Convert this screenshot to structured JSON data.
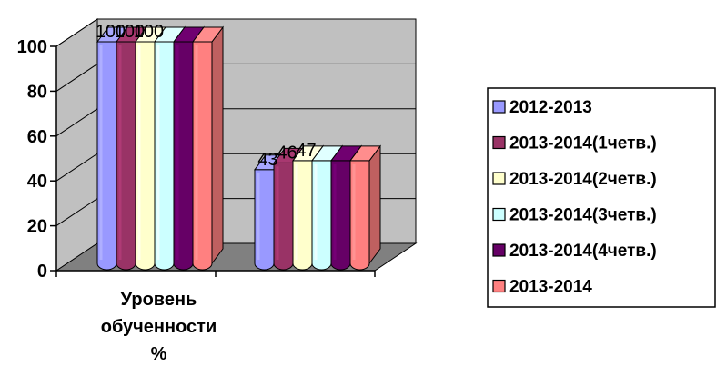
{
  "chart_data": {
    "type": "bar",
    "title": "",
    "xlabel": "",
    "ylabel": "",
    "ylim": [
      0,
      100
    ],
    "yticks": [
      "0",
      "20",
      "40",
      "60",
      "80",
      "100"
    ],
    "grid": true,
    "legend_position": "right",
    "categories": [
      "Уровень обученности %",
      ""
    ],
    "category_label_lines": [
      "Уровень",
      "обученности",
      "%"
    ],
    "series": [
      {
        "name": "2012-2013",
        "values": [
          100,
          43
        ],
        "labels": [
          "100",
          "43"
        ],
        "color": "#9999ff"
      },
      {
        "name": "2013-2014(1четв.)",
        "values": [
          100,
          46
        ],
        "labels": [
          "100",
          "46"
        ],
        "color": "#993366"
      },
      {
        "name": "2013-2014(2четв.)",
        "values": [
          100,
          47
        ],
        "labels": [
          "100",
          "47"
        ],
        "color": "#ffffcc"
      },
      {
        "name": "2013-2014(3четв.)",
        "values": [
          100,
          47
        ],
        "labels": [
          "",
          ""
        ],
        "color": "#ccffff"
      },
      {
        "name": "2013-2014(4четв.)",
        "values": [
          100,
          47
        ],
        "labels": [
          "",
          ""
        ],
        "color": "#660066"
      },
      {
        "name": "2013-2014",
        "values": [
          100,
          47
        ],
        "labels": [
          "",
          ""
        ],
        "color": "#ff8080"
      }
    ],
    "wall_color": "#c0c0c0",
    "floor_color": "#808080"
  }
}
